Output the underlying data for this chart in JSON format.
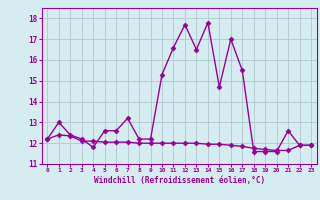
{
  "xlabel": "Windchill (Refroidissement éolien,°C)",
  "x_values": [
    0,
    1,
    2,
    3,
    4,
    5,
    6,
    7,
    8,
    9,
    10,
    11,
    12,
    13,
    14,
    15,
    16,
    17,
    18,
    19,
    20,
    21,
    22,
    23
  ],
  "y_values": [
    12.2,
    13.0,
    12.4,
    12.2,
    11.8,
    12.6,
    12.6,
    13.2,
    12.2,
    12.2,
    15.3,
    16.6,
    17.7,
    16.5,
    17.8,
    14.7,
    17.0,
    15.5,
    11.6,
    11.6,
    11.6,
    12.6,
    11.9,
    11.9
  ],
  "y2_values": [
    12.2,
    12.4,
    12.35,
    12.1,
    12.1,
    12.05,
    12.05,
    12.05,
    12.0,
    12.0,
    12.0,
    12.0,
    12.0,
    12.0,
    11.95,
    11.95,
    11.9,
    11.85,
    11.75,
    11.7,
    11.65,
    11.65,
    11.9,
    11.9
  ],
  "ylim": [
    11,
    18.5
  ],
  "xlim": [
    -0.5,
    23.5
  ],
  "yticks": [
    11,
    12,
    13,
    14,
    15,
    16,
    17,
    18
  ],
  "line_color": "#990099",
  "bg_color": "#d5edf0",
  "grid_color": "#b0c8cc",
  "tick_color": "#990099",
  "label_color": "#990099",
  "marker": "D",
  "marker_size": 2.5,
  "line_width": 1.0
}
